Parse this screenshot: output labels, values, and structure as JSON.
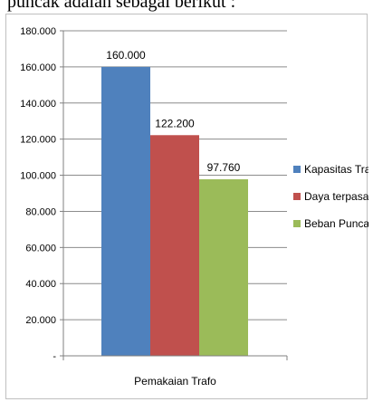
{
  "page": {
    "caption_fragment": "puncak adalah sebagai berikut :"
  },
  "chart_data": {
    "type": "bar",
    "categories": [
      "Pemakaian Trafo"
    ],
    "series": [
      {
        "name": "Kapasitas Trafo",
        "values": [
          160000
        ],
        "value_label": "160.000",
        "color": "#4f81bd"
      },
      {
        "name": "Daya terpasang",
        "values": [
          122200
        ],
        "value_label": "122.200",
        "color": "#c0504d"
      },
      {
        "name": "Beban Puncak",
        "values": [
          97760
        ],
        "value_label": "97.760",
        "color": "#9bbb59"
      }
    ],
    "ylim": [
      0,
      180000
    ],
    "yticks": [
      {
        "value": 0,
        "label": "-"
      },
      {
        "value": 20000,
        "label": "20.000"
      },
      {
        "value": 40000,
        "label": "40.000"
      },
      {
        "value": 60000,
        "label": "60.000"
      },
      {
        "value": 80000,
        "label": "80.000"
      },
      {
        "value": 100000,
        "label": "100.000"
      },
      {
        "value": 120000,
        "label": "120.000"
      },
      {
        "value": 140000,
        "label": "140.000"
      },
      {
        "value": 160000,
        "label": "160.000"
      },
      {
        "value": 180000,
        "label": "180.000"
      }
    ],
    "grid": true,
    "legend": "right",
    "title": "",
    "xlabel": "",
    "ylabel": ""
  }
}
